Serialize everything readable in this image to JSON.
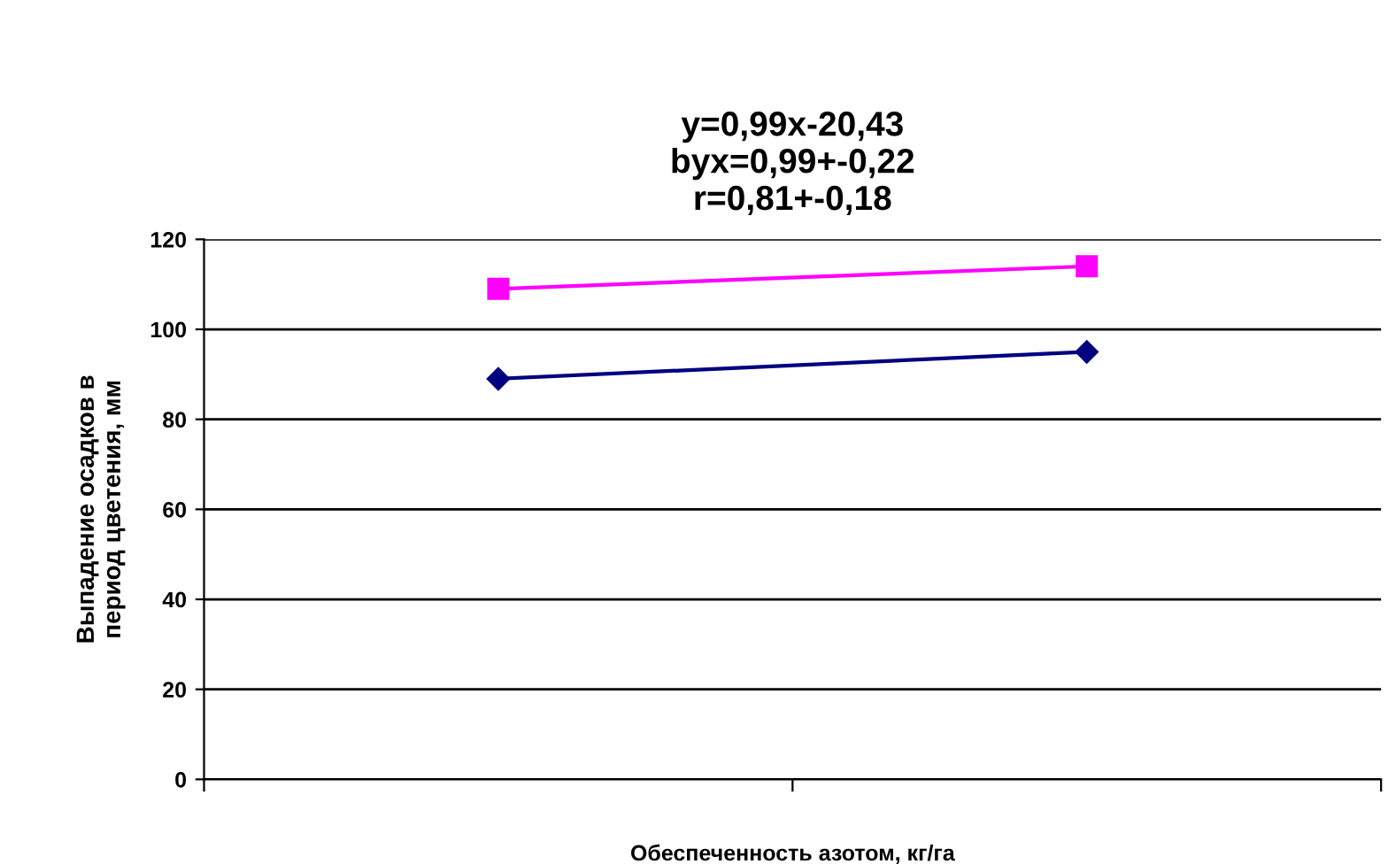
{
  "chart_data": {
    "type": "line",
    "title": "y=0,99x-20,43\nbyx=0,99+-0,22\nr=0,81+-0,18",
    "xlabel": "Обеспеченность азотом, кг/га",
    "ylabel": "Выпадение осадков в\nпериод цветения, мм",
    "categories": [
      null,
      null
    ],
    "series": [
      {
        "color": "#ff00ff",
        "values": [
          109,
          114
        ],
        "marker": "square"
      },
      {
        "color": "#000080",
        "values": [
          89,
          95
        ],
        "marker": "diamond"
      }
    ],
    "ylim": [
      0,
      120
    ],
    "yticks": [
      0,
      20,
      40,
      60,
      80,
      100,
      120
    ],
    "grid": "y"
  }
}
